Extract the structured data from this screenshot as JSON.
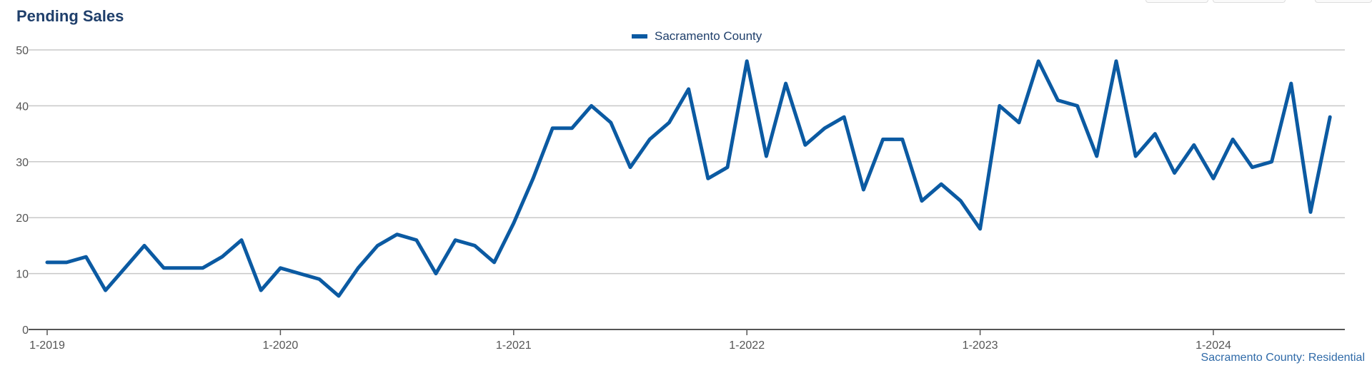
{
  "chart_data": {
    "type": "line",
    "title": "Pending Sales",
    "legend": {
      "position": "top-center"
    },
    "series": [
      {
        "name": "Sacramento County",
        "color": "#0b5aa2",
        "values": [
          12,
          12,
          13,
          7,
          11,
          15,
          11,
          11,
          11,
          13,
          16,
          7,
          11,
          10,
          9,
          6,
          11,
          15,
          17,
          16,
          10,
          16,
          15,
          12,
          19,
          27,
          36,
          36,
          40,
          37,
          29,
          34,
          37,
          43,
          27,
          29,
          48,
          31,
          44,
          33,
          36,
          38,
          25,
          34,
          34,
          23,
          26,
          23,
          18,
          40,
          37,
          48,
          41,
          40,
          31,
          48,
          31,
          35,
          28,
          33,
          27,
          34,
          29,
          30,
          44,
          21,
          38
        ]
      }
    ],
    "x": {
      "start": "1-2019",
      "step": "month",
      "tick_labels": [
        "1-2019",
        "1-2020",
        "1-2021",
        "1-2022",
        "1-2023",
        "1-2024"
      ]
    },
    "y": {
      "range": [
        0,
        50
      ],
      "tick_labels": [
        "0",
        "10",
        "20",
        "30",
        "40",
        "50"
      ]
    },
    "grid": "horizontal",
    "source_note": "Sacramento County: Residential"
  }
}
